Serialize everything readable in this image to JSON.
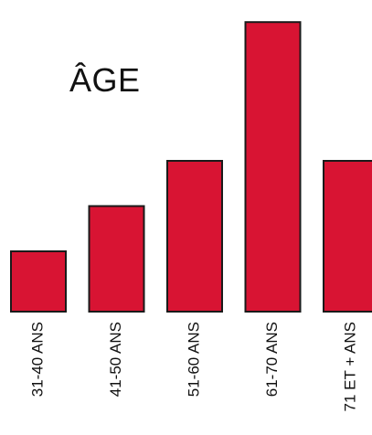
{
  "chart_data": {
    "type": "bar",
    "title": "ÂGE",
    "categories": [
      "31-40 ANS",
      "41-50 ANS",
      "51-60 ANS",
      "61-70 ANS",
      "71 ET + ANS"
    ],
    "values": [
      2,
      3.5,
      5,
      9.6,
      5
    ],
    "xlabel": "",
    "ylabel": "",
    "ylim": [
      0,
      10
    ],
    "grid": false,
    "legend": "none",
    "bar_color": "#d81433",
    "bar_outline_color": "#1a1a1a"
  }
}
